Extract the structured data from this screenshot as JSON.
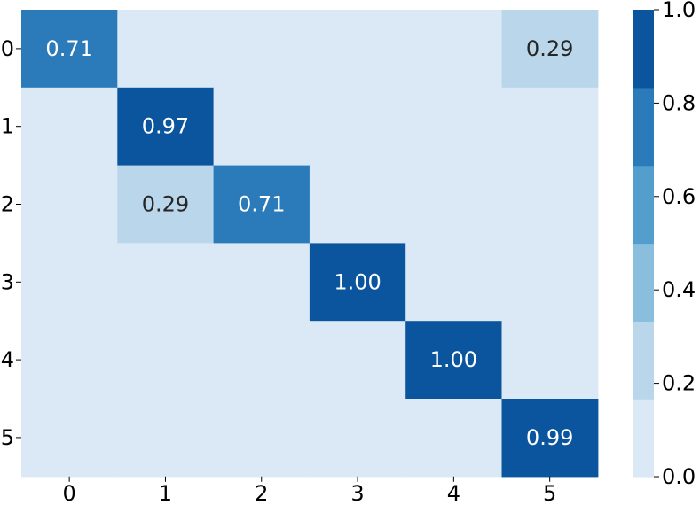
{
  "chart_data": {
    "type": "heatmap",
    "title": "",
    "xlabel": "",
    "ylabel": "",
    "x_categories": [
      "0",
      "1",
      "2",
      "3",
      "4",
      "5"
    ],
    "y_categories": [
      "0",
      "1",
      "2",
      "3",
      "4",
      "5"
    ],
    "values": [
      [
        0.71,
        0.0,
        0.0,
        0.0,
        0.0,
        0.29
      ],
      [
        0.0,
        0.97,
        0.0,
        0.0,
        0.0,
        0.0
      ],
      [
        0.0,
        0.29,
        0.71,
        0.0,
        0.0,
        0.0
      ],
      [
        0.0,
        0.0,
        0.0,
        1.0,
        0.0,
        0.0
      ],
      [
        0.0,
        0.0,
        0.0,
        0.0,
        1.0,
        0.0
      ],
      [
        0.0,
        0.0,
        0.0,
        0.0,
        0.0,
        0.99
      ]
    ],
    "cell_labels": [
      [
        "0.71",
        "",
        "",
        "",
        "",
        "0.29"
      ],
      [
        "",
        "0.97",
        "",
        "",
        "",
        ""
      ],
      [
        "",
        "0.29",
        "0.71",
        "",
        "",
        ""
      ],
      [
        "",
        "",
        "",
        "1.00",
        "",
        ""
      ],
      [
        "",
        "",
        "",
        "",
        "1.00",
        ""
      ],
      [
        "",
        "",
        "",
        "",
        "",
        "0.99"
      ]
    ],
    "colorbar": {
      "vmin": 0.0,
      "vmax": 1.0,
      "bins": 6,
      "ticks": [
        "0.0",
        "0.2",
        "0.4",
        "0.6",
        "0.8",
        "1.0"
      ],
      "bin_colors": [
        "#dbe9f6",
        "#bad6eb",
        "#89bedc",
        "#539ecd",
        "#2b7bba",
        "#0b559f"
      ]
    },
    "text_color_dark": "#262626",
    "text_color_light": "#ffffff",
    "legend_position": "right"
  }
}
